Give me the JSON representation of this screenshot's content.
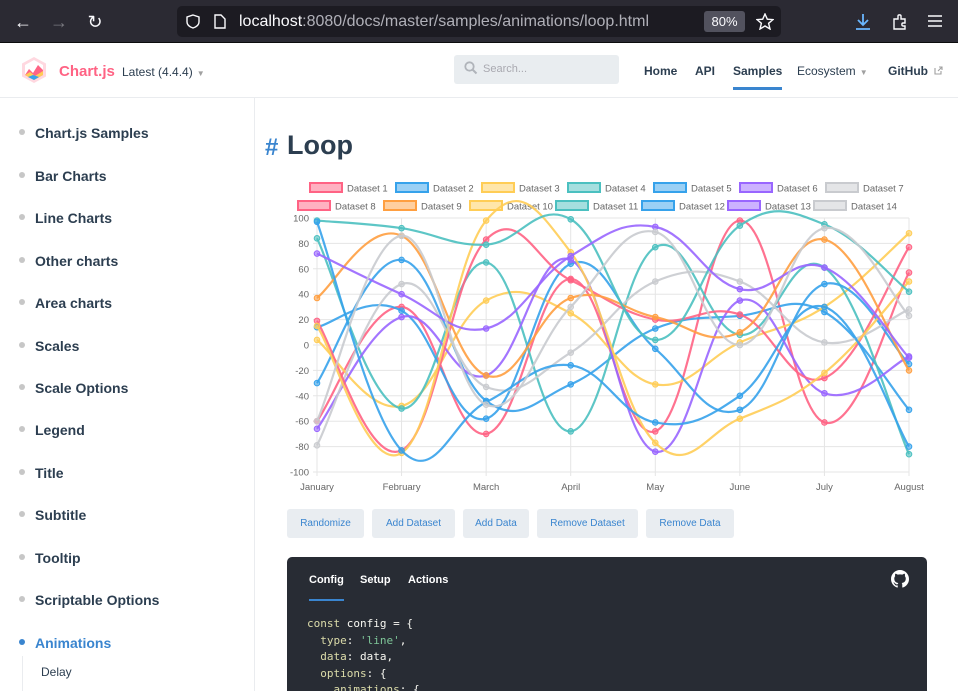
{
  "browser": {
    "url_host": "localhost",
    "url_rest": ":8080/docs/master/samples/animations/loop.html",
    "zoom": "80%"
  },
  "header": {
    "brand": "Chart.js",
    "version": "Latest (4.4.4)",
    "search_placeholder": "Search...",
    "nav": {
      "home": "Home",
      "api": "API",
      "samples": "Samples",
      "ecosystem": "Ecosystem",
      "github": "GitHub"
    }
  },
  "sidebar": {
    "items": [
      {
        "label": "Chart.js Samples"
      },
      {
        "label": "Bar Charts"
      },
      {
        "label": "Line Charts"
      },
      {
        "label": "Other charts"
      },
      {
        "label": "Area charts"
      },
      {
        "label": "Scales"
      },
      {
        "label": "Scale Options"
      },
      {
        "label": "Legend"
      },
      {
        "label": "Title"
      },
      {
        "label": "Subtitle"
      },
      {
        "label": "Tooltip"
      },
      {
        "label": "Scriptable Options"
      },
      {
        "label": "Animations"
      }
    ],
    "sub_item": "Delay"
  },
  "page": {
    "hash": "#",
    "title": "Loop"
  },
  "colors": {
    "accent": "#3a85cf",
    "brand": "#ff6384",
    "code_bg": "#282c34"
  },
  "chart_data": {
    "type": "line",
    "categories": [
      "January",
      "February",
      "March",
      "April",
      "May",
      "June",
      "July",
      "August"
    ],
    "ylim": [
      -100,
      100
    ],
    "yticks": [
      100,
      80,
      60,
      40,
      20,
      0,
      -20,
      -40,
      -60,
      -80,
      -100
    ],
    "grid": true,
    "legend_position": "top",
    "series": [
      {
        "name": "Dataset 1",
        "color": "#ff6384",
        "values": [
          -60,
          30,
          -70,
          52,
          -68,
          98,
          -61,
          57
        ]
      },
      {
        "name": "Dataset 2",
        "color": "#36a2eb",
        "values": [
          -30,
          67,
          -44,
          -31,
          13,
          23,
          26,
          -51
        ]
      },
      {
        "name": "Dataset 3",
        "color": "#ffcd56",
        "values": [
          4,
          -48,
          35,
          25,
          -31,
          2,
          30,
          88
        ]
      },
      {
        "name": "Dataset 4",
        "color": "#4bc0c0",
        "values": [
          84,
          -50,
          65,
          -68,
          77,
          8,
          61,
          -86
        ]
      },
      {
        "name": "Dataset 5",
        "color": "#36a2eb",
        "values": [
          14,
          27,
          -58,
          64,
          -3,
          -51,
          48,
          -15
        ]
      },
      {
        "name": "Dataset 6",
        "color": "#9966ff",
        "values": [
          -66,
          22,
          -24,
          67,
          -84,
          35,
          -38,
          -9
        ]
      },
      {
        "name": "Dataset 7",
        "color": "#c9cbcf",
        "values": [
          -79,
          48,
          -33,
          -6,
          50,
          50,
          2,
          28
        ]
      },
      {
        "name": "Dataset 8",
        "color": "#ff6384",
        "values": [
          19,
          -83,
          83,
          51,
          20,
          24,
          -26,
          77
        ]
      },
      {
        "name": "Dataset 9",
        "color": "#ff9f40",
        "values": [
          37,
          86,
          -24,
          37,
          22,
          10,
          83,
          -20
        ]
      },
      {
        "name": "Dataset 10",
        "color": "#ffcd56",
        "values": [
          15,
          -85,
          98,
          73,
          -77,
          -58,
          -22,
          50
        ]
      },
      {
        "name": "Dataset 11",
        "color": "#4bc0c0",
        "values": [
          98,
          92,
          79,
          99,
          4,
          94,
          95,
          42
        ]
      },
      {
        "name": "Dataset 12",
        "color": "#36a2eb",
        "values": [
          97,
          -83,
          -45,
          -16,
          -61,
          -40,
          30,
          -80
        ]
      },
      {
        "name": "Dataset 13",
        "color": "#9966ff",
        "values": [
          72,
          40,
          13,
          70,
          93,
          44,
          61,
          -10
        ]
      },
      {
        "name": "Dataset 14",
        "color": "#c9cbcf",
        "values": [
          -60,
          86,
          -47,
          30,
          89,
          0,
          92,
          23
        ]
      }
    ]
  },
  "buttons": [
    "Randomize",
    "Add Dataset",
    "Add Data",
    "Remove Dataset",
    "Remove Data"
  ],
  "code_tabs": [
    "Config",
    "Setup",
    "Actions"
  ]
}
